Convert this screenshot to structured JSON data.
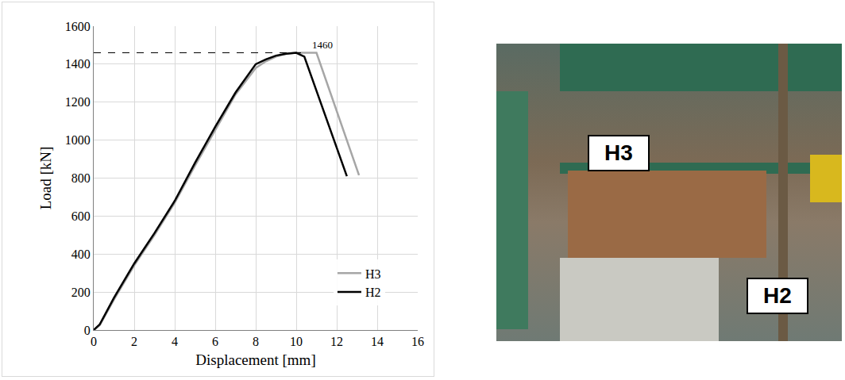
{
  "chart_data": {
    "type": "line",
    "x_label": "Displacement [mm]",
    "y_label": "Load [kN]",
    "xlim": [
      0,
      16
    ],
    "xticks": [
      0,
      2,
      4,
      6,
      8,
      10,
      12,
      14,
      16
    ],
    "ylim": [
      0,
      1600
    ],
    "yticks": [
      0,
      200,
      400,
      600,
      800,
      1000,
      1200,
      1400,
      1600
    ],
    "grid": true,
    "legend": "lower right",
    "reference_line": {
      "y": 1460,
      "x": [
        0,
        10.5
      ],
      "line_style": "dashed",
      "color": "#000000"
    },
    "annotations": [
      {
        "text": "1460",
        "x": 11.3,
        "y": 1500
      }
    ],
    "series": [
      {
        "name": "H3",
        "color": "#a6a6a6",
        "line_style": "solid",
        "x": [
          0,
          0.3,
          1,
          2,
          3,
          4,
          5,
          6,
          7,
          8,
          8.5,
          9,
          9.5,
          10,
          11,
          13.1
        ],
        "values": [
          0,
          25,
          160,
          340,
          500,
          670,
          865,
          1055,
          1240,
          1380,
          1415,
          1440,
          1455,
          1460,
          1460,
          815
        ]
      },
      {
        "name": "H2",
        "color": "#000000",
        "line_style": "solid",
        "x": [
          0,
          0.3,
          1,
          2,
          3,
          4,
          5,
          6,
          7,
          8,
          8.5,
          9,
          9.5,
          10,
          10.4,
          12.5
        ],
        "values": [
          0,
          30,
          170,
          350,
          510,
          680,
          880,
          1070,
          1250,
          1400,
          1425,
          1445,
          1455,
          1460,
          1440,
          810
        ]
      }
    ]
  },
  "photo": {
    "labels": [
      "H3",
      "H2"
    ]
  }
}
